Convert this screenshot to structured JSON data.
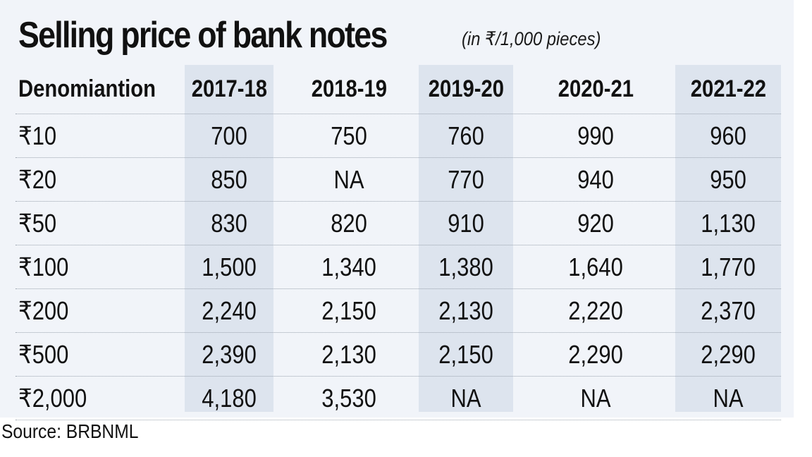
{
  "chart_data": {
    "type": "table",
    "title": "Selling price of bank notes",
    "subtitle": "(in ₹/1,000 pieces)",
    "columns": [
      "Denomiantion",
      "2017-18",
      "2018-19",
      "2019-20",
      "2020-21",
      "2021-22"
    ],
    "rows": [
      {
        "denomination": "₹10",
        "values": [
          "700",
          "750",
          "760",
          "990",
          "960"
        ]
      },
      {
        "denomination": "₹20",
        "values": [
          "850",
          "NA",
          "770",
          "940",
          "950"
        ]
      },
      {
        "denomination": "₹50",
        "values": [
          "830",
          "820",
          "910",
          "920",
          "1,130"
        ]
      },
      {
        "denomination": "₹100",
        "values": [
          "1,500",
          "1,340",
          "1,380",
          "1,640",
          "1,770"
        ]
      },
      {
        "denomination": "₹200",
        "values": [
          "2,240",
          "2,150",
          "2,130",
          "2,220",
          "2,370"
        ]
      },
      {
        "denomination": "₹500",
        "values": [
          "2,390",
          "2,130",
          "2,150",
          "2,290",
          "2,290"
        ]
      },
      {
        "denomination": "₹2,000",
        "values": [
          "4,180",
          "3,530",
          "NA",
          "NA",
          "NA"
        ]
      }
    ],
    "source": "Source: BRBNML",
    "colors": {
      "background": "#f1f4f9",
      "band": "#dde4ee",
      "text": "#111111"
    }
  }
}
